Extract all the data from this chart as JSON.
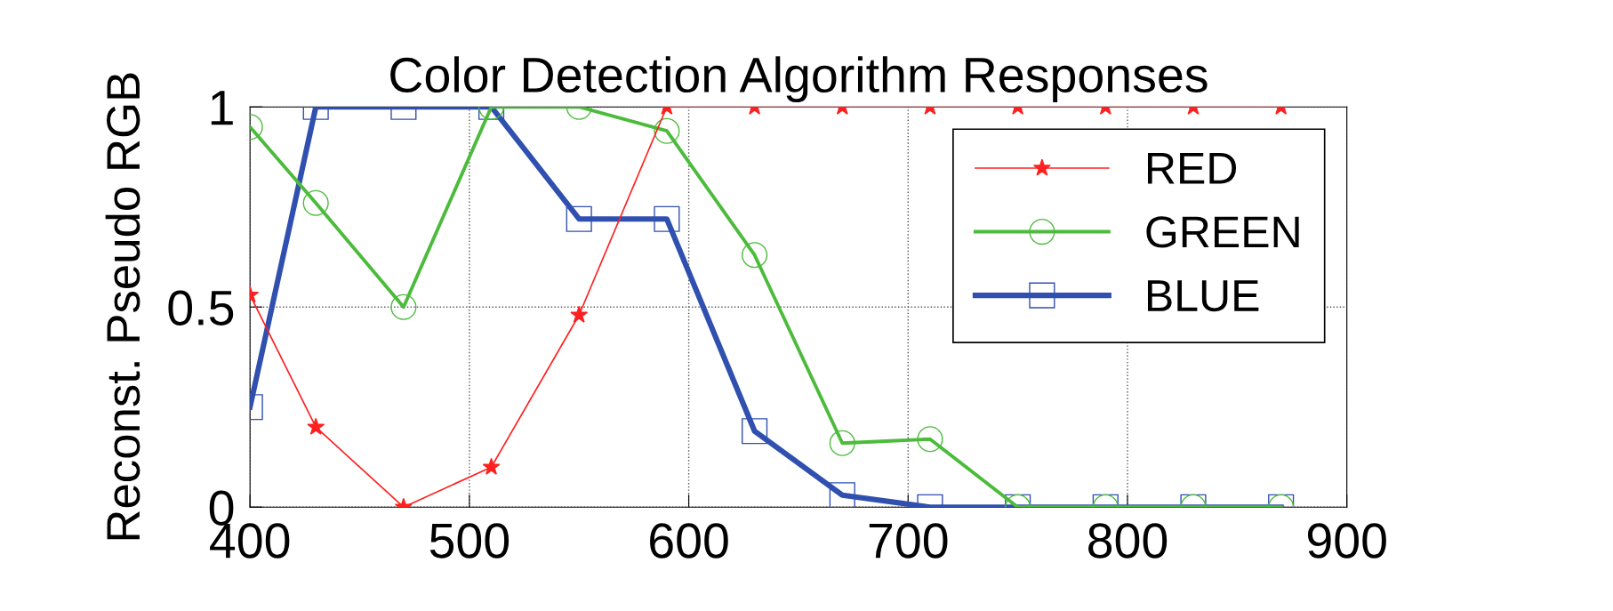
{
  "chart_data": {
    "type": "line",
    "title": "Color Detection Algorithm Responses",
    "ylabel": "Reconst. Pseudo RGB",
    "x": [
      400,
      430,
      470,
      510,
      550,
      590,
      630,
      670,
      710,
      750,
      790,
      830,
      870
    ],
    "series": [
      {
        "name": "RED",
        "color": "#ff2020",
        "marker": "star",
        "values": [
          0.53,
          0.2,
          0,
          0.1,
          0.48,
          1,
          1,
          1,
          1,
          1,
          1,
          1,
          1
        ]
      },
      {
        "name": "GREEN",
        "color": "#4cbb3c",
        "marker": "circle",
        "values": [
          0.95,
          0.76,
          0.5,
          1,
          1,
          0.94,
          0.63,
          0.16,
          0.17,
          0,
          0,
          0,
          0
        ]
      },
      {
        "name": "BLUE",
        "color": "#3050b0",
        "marker": "square",
        "values": [
          0.25,
          1,
          1,
          1,
          0.72,
          0.72,
          0.19,
          0.03,
          0,
          0,
          0,
          0,
          0
        ]
      }
    ],
    "xlim": [
      400,
      900
    ],
    "xticks": [
      400,
      500,
      600,
      700,
      800,
      900
    ],
    "ylim": [
      0,
      1
    ],
    "yticks": [
      0,
      0.5,
      1
    ],
    "grid": true,
    "line_style": "solid",
    "legend": "top right"
  }
}
